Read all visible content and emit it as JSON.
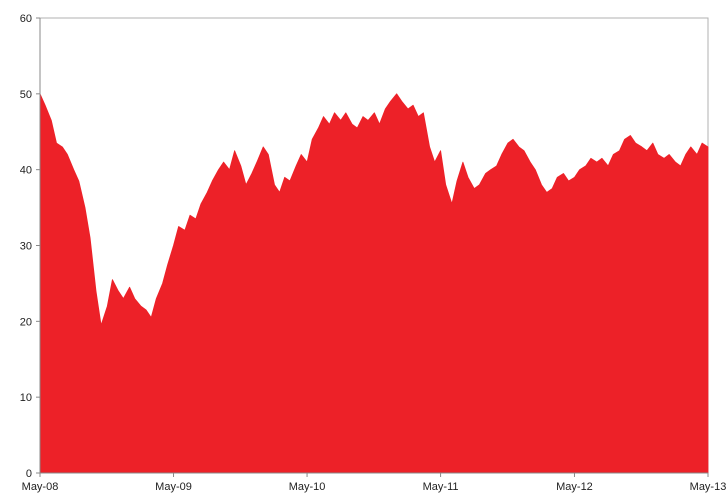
{
  "chart_data": {
    "type": "area",
    "title": "",
    "xlabel": "",
    "ylabel": "",
    "ylim": [
      0,
      60
    ],
    "xlim": [
      "2008-05-01",
      "2013-05-01"
    ],
    "grid": false,
    "legend": "none",
    "fill_color": "#ED2128",
    "y_ticks": [
      "0",
      "10",
      "20",
      "30",
      "40",
      "50",
      "60"
    ],
    "x_ticks": [
      {
        "date": "2008-05-01",
        "label": "May-08"
      },
      {
        "date": "2009-05-01",
        "label": "May-09"
      },
      {
        "date": "2010-05-01",
        "label": "May-10"
      },
      {
        "date": "2011-05-01",
        "label": "May-11"
      },
      {
        "date": "2012-05-01",
        "label": "May-12"
      },
      {
        "date": "2013-05-01",
        "label": "May-13"
      }
    ],
    "series": [
      {
        "points": [
          [
            "2008-05-01",
            50.0
          ],
          [
            "2008-05-15",
            48.5
          ],
          [
            "2008-06-01",
            46.5
          ],
          [
            "2008-06-15",
            43.5
          ],
          [
            "2008-07-01",
            43.0
          ],
          [
            "2008-07-15",
            42.0
          ],
          [
            "2008-08-01",
            40.0
          ],
          [
            "2008-08-15",
            38.5
          ],
          [
            "2008-09-01",
            35.0
          ],
          [
            "2008-09-15",
            31.0
          ],
          [
            "2008-10-01",
            24.0
          ],
          [
            "2008-10-15",
            19.5
          ],
          [
            "2008-11-01",
            22.0
          ],
          [
            "2008-11-15",
            25.5
          ],
          [
            "2008-12-01",
            24.0
          ],
          [
            "2008-12-15",
            23.0
          ],
          [
            "2009-01-01",
            24.5
          ],
          [
            "2009-01-15",
            23.0
          ],
          [
            "2009-02-01",
            22.0
          ],
          [
            "2009-02-15",
            21.5
          ],
          [
            "2009-03-01",
            20.5
          ],
          [
            "2009-03-15",
            23.0
          ],
          [
            "2009-04-01",
            25.0
          ],
          [
            "2009-04-15",
            27.5
          ],
          [
            "2009-05-01",
            30.0
          ],
          [
            "2009-05-15",
            32.5
          ],
          [
            "2009-06-01",
            32.0
          ],
          [
            "2009-06-15",
            34.0
          ],
          [
            "2009-07-01",
            33.5
          ],
          [
            "2009-07-15",
            35.5
          ],
          [
            "2009-08-01",
            37.0
          ],
          [
            "2009-08-15",
            38.5
          ],
          [
            "2009-09-01",
            40.0
          ],
          [
            "2009-09-15",
            41.0
          ],
          [
            "2009-10-01",
            40.0
          ],
          [
            "2009-10-15",
            42.5
          ],
          [
            "2009-11-01",
            40.5
          ],
          [
            "2009-11-15",
            38.0
          ],
          [
            "2009-12-01",
            39.5
          ],
          [
            "2009-12-15",
            41.0
          ],
          [
            "2010-01-01",
            43.0
          ],
          [
            "2010-01-15",
            42.0
          ],
          [
            "2010-02-01",
            38.0
          ],
          [
            "2010-02-15",
            37.0
          ],
          [
            "2010-03-01",
            39.0
          ],
          [
            "2010-03-15",
            38.5
          ],
          [
            "2010-04-01",
            40.5
          ],
          [
            "2010-04-15",
            42.0
          ],
          [
            "2010-05-01",
            41.0
          ],
          [
            "2010-05-15",
            44.0
          ],
          [
            "2010-06-01",
            45.5
          ],
          [
            "2010-06-15",
            47.0
          ],
          [
            "2010-07-01",
            46.0
          ],
          [
            "2010-07-15",
            47.5
          ],
          [
            "2010-08-01",
            46.5
          ],
          [
            "2010-08-15",
            47.5
          ],
          [
            "2010-09-01",
            46.0
          ],
          [
            "2010-09-15",
            45.5
          ],
          [
            "2010-10-01",
            47.0
          ],
          [
            "2010-10-15",
            46.5
          ],
          [
            "2010-11-01",
            47.5
          ],
          [
            "2010-11-15",
            46.0
          ],
          [
            "2010-12-01",
            48.0
          ],
          [
            "2010-12-15",
            49.0
          ],
          [
            "2011-01-01",
            50.0
          ],
          [
            "2011-01-15",
            49.0
          ],
          [
            "2011-02-01",
            48.0
          ],
          [
            "2011-02-15",
            48.5
          ],
          [
            "2011-03-01",
            47.0
          ],
          [
            "2011-03-15",
            47.5
          ],
          [
            "2011-04-01",
            43.0
          ],
          [
            "2011-04-15",
            41.0
          ],
          [
            "2011-05-01",
            42.5
          ],
          [
            "2011-05-15",
            38.0
          ],
          [
            "2011-06-01",
            35.5
          ],
          [
            "2011-06-15",
            38.5
          ],
          [
            "2011-07-01",
            41.0
          ],
          [
            "2011-07-15",
            39.0
          ],
          [
            "2011-08-01",
            37.5
          ],
          [
            "2011-08-15",
            38.0
          ],
          [
            "2011-09-01",
            39.5
          ],
          [
            "2011-09-15",
            40.0
          ],
          [
            "2011-10-01",
            40.5
          ],
          [
            "2011-10-15",
            42.0
          ],
          [
            "2011-11-01",
            43.5
          ],
          [
            "2011-11-15",
            44.0
          ],
          [
            "2011-12-01",
            43.0
          ],
          [
            "2011-12-15",
            42.5
          ],
          [
            "2012-01-01",
            41.0
          ],
          [
            "2012-01-15",
            40.0
          ],
          [
            "2012-02-01",
            38.0
          ],
          [
            "2012-02-15",
            37.0
          ],
          [
            "2012-03-01",
            37.5
          ],
          [
            "2012-03-15",
            39.0
          ],
          [
            "2012-04-01",
            39.5
          ],
          [
            "2012-04-15",
            38.5
          ],
          [
            "2012-05-01",
            39.0
          ],
          [
            "2012-05-15",
            40.0
          ],
          [
            "2012-06-01",
            40.5
          ],
          [
            "2012-06-15",
            41.5
          ],
          [
            "2012-07-01",
            41.0
          ],
          [
            "2012-07-15",
            41.5
          ],
          [
            "2012-08-01",
            40.5
          ],
          [
            "2012-08-15",
            42.0
          ],
          [
            "2012-09-01",
            42.5
          ],
          [
            "2012-09-15",
            44.0
          ],
          [
            "2012-10-01",
            44.5
          ],
          [
            "2012-10-15",
            43.5
          ],
          [
            "2012-11-01",
            43.0
          ],
          [
            "2012-11-15",
            42.5
          ],
          [
            "2012-12-01",
            43.5
          ],
          [
            "2012-12-15",
            42.0
          ],
          [
            "2013-01-01",
            41.5
          ],
          [
            "2013-01-15",
            42.0
          ],
          [
            "2013-02-01",
            41.0
          ],
          [
            "2013-02-15",
            40.5
          ],
          [
            "2013-03-01",
            42.0
          ],
          [
            "2013-03-15",
            43.0
          ],
          [
            "2013-04-01",
            42.0
          ],
          [
            "2013-04-15",
            43.5
          ],
          [
            "2013-05-01",
            43.0
          ]
        ]
      }
    ]
  }
}
